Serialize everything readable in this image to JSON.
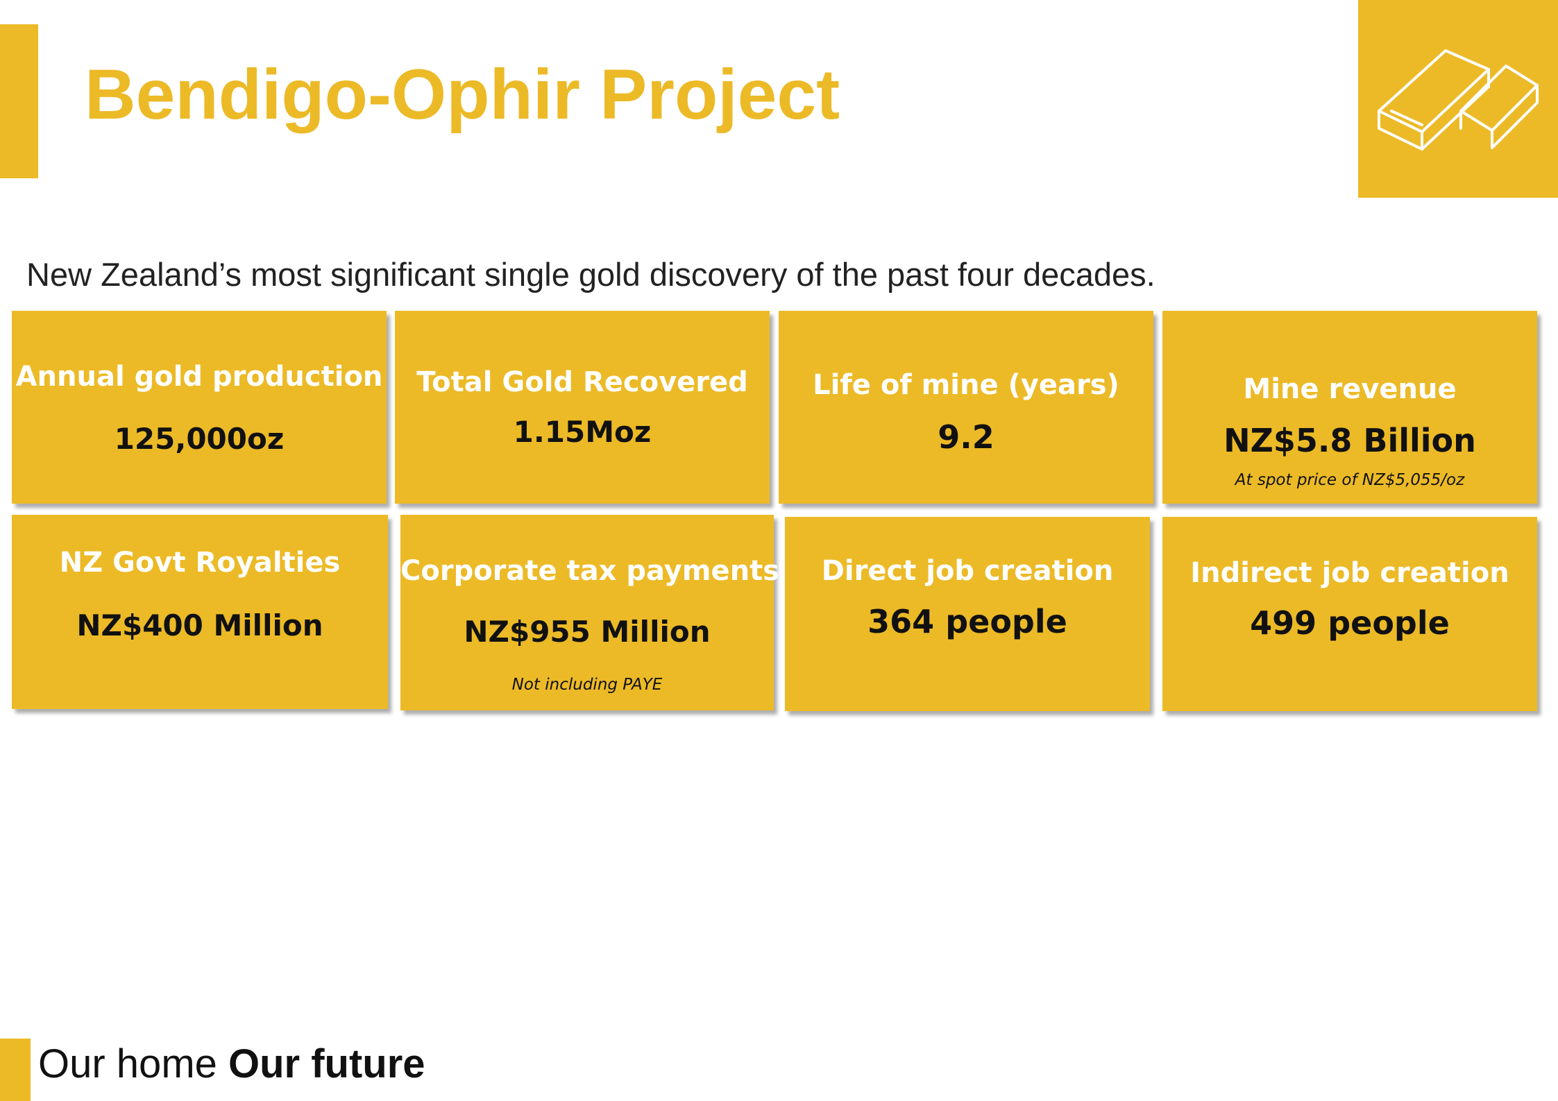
{
  "header": {
    "title": "Bendigo-Ophir Project",
    "logo_icon": "gold-bars-icon"
  },
  "subtitle": "New Zealand’s most significant single gold discovery of the past four decades.",
  "cards": [
    {
      "label": "Annual gold production",
      "value": "125,000oz",
      "note": ""
    },
    {
      "label": "Total Gold Recovered",
      "value": "1.15Moz",
      "note": ""
    },
    {
      "label": "Life of mine (years)",
      "value": "9.2",
      "note": ""
    },
    {
      "label": "Mine revenue",
      "value": "NZ$5.8 Billion",
      "note": "At spot price of NZ$5,055/oz"
    },
    {
      "label": "NZ Govt Royalties",
      "value": "NZ$400 Million",
      "note": ""
    },
    {
      "label": "Corporate tax payments",
      "value": "NZ$955 Million",
      "note": "Not including PAYE"
    },
    {
      "label": "Direct job creation",
      "value": "364 people",
      "note": ""
    },
    {
      "label": "Indirect job creation",
      "value": "499 people",
      "note": ""
    }
  ],
  "footer": {
    "text_regular": "Our home ",
    "text_bold": "Our future"
  },
  "colors": {
    "accent": "#ecba27",
    "label_text": "#ffffff",
    "value_text": "#111111"
  }
}
